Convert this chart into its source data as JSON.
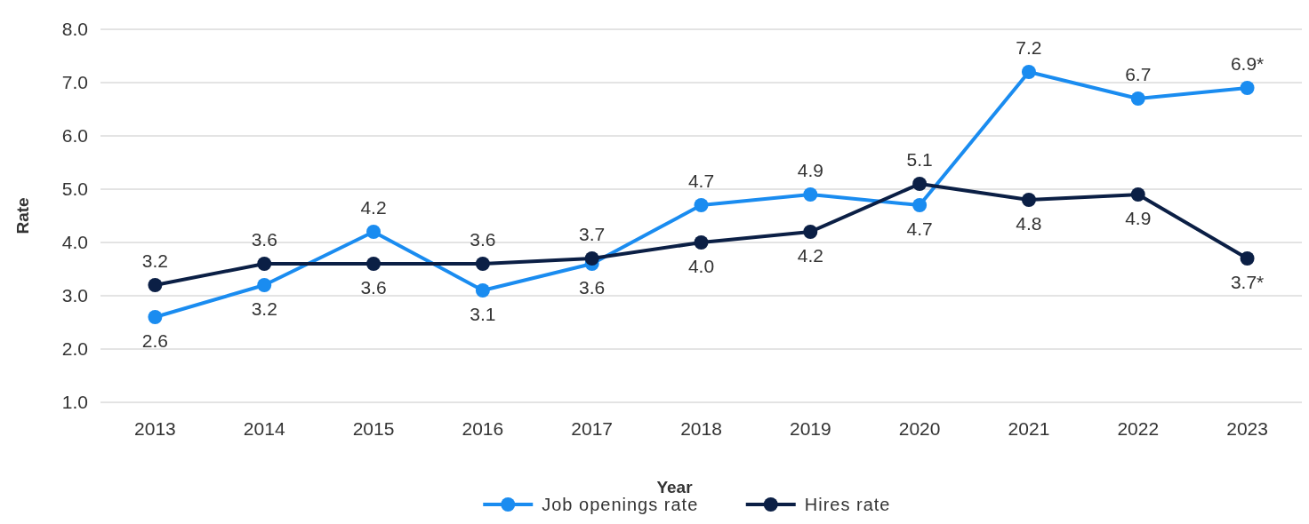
{
  "chart_data": {
    "type": "line",
    "xlabel": "Year",
    "ylabel": "Rate",
    "categories": [
      "2013",
      "2014",
      "2015",
      "2016",
      "2017",
      "2018",
      "2019",
      "2020",
      "2021",
      "2022",
      "2023"
    ],
    "series": [
      {
        "name": "Job openings rate",
        "color": "#1a8cf0",
        "values": [
          2.6,
          3.2,
          4.2,
          3.1,
          3.6,
          4.7,
          4.9,
          4.7,
          7.2,
          6.7,
          6.9
        ],
        "value_labels": [
          "2.6",
          "3.2",
          "4.2",
          "3.1",
          "3.6",
          "4.7",
          "4.9",
          "4.7",
          "7.2",
          "6.7",
          "6.9*"
        ]
      },
      {
        "name": "Hires rate",
        "color": "#0b1f45",
        "values": [
          3.2,
          3.6,
          3.6,
          3.6,
          3.7,
          4.0,
          4.2,
          5.1,
          4.8,
          4.9,
          3.7
        ],
        "value_labels": [
          "3.2",
          "3.6",
          "3.6",
          "3.6",
          "3.7",
          "4.0",
          "4.2",
          "5.1",
          "4.8",
          "4.9",
          "3.7*"
        ]
      }
    ],
    "ylim": [
      1,
      8
    ],
    "yticks": [
      {
        "value": 1,
        "label": "1.0"
      },
      {
        "value": 2,
        "label": "2.0"
      },
      {
        "value": 3,
        "label": "3.0"
      },
      {
        "value": 4,
        "label": "4.0"
      },
      {
        "value": 5,
        "label": "5.0"
      },
      {
        "value": 6,
        "label": "6.0"
      },
      {
        "value": 7,
        "label": "7.0"
      },
      {
        "value": 8,
        "label": "8.0"
      }
    ],
    "grid": "y",
    "legend": "bottom",
    "marker": "circle",
    "line_style": "solid"
  }
}
